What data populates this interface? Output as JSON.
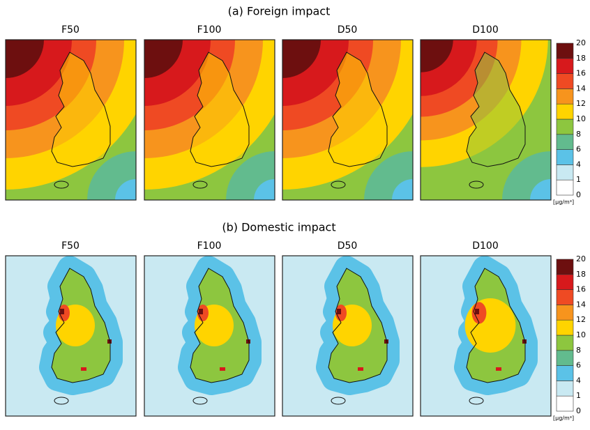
{
  "figure_a": {
    "title": "(a) Foreign impact",
    "panels": [
      "F50",
      "F100",
      "D50",
      "D100"
    ]
  },
  "figure_b": {
    "title": "(b) Domestic impact",
    "panels": [
      "F50",
      "F100",
      "D50",
      "D100"
    ]
  },
  "colorbar": {
    "ticks": [
      0,
      1,
      4,
      6,
      8,
      10,
      12,
      14,
      16,
      18,
      20
    ],
    "colors": [
      "#ffffff",
      "#c9e9f2",
      "#5bc2e7",
      "#62bb8e",
      "#8dc63f",
      "#ffd400",
      "#f7941d",
      "#ef4a23",
      "#d7191c",
      "#6d0f0f"
    ],
    "unit": "[μg/m³]"
  }
}
